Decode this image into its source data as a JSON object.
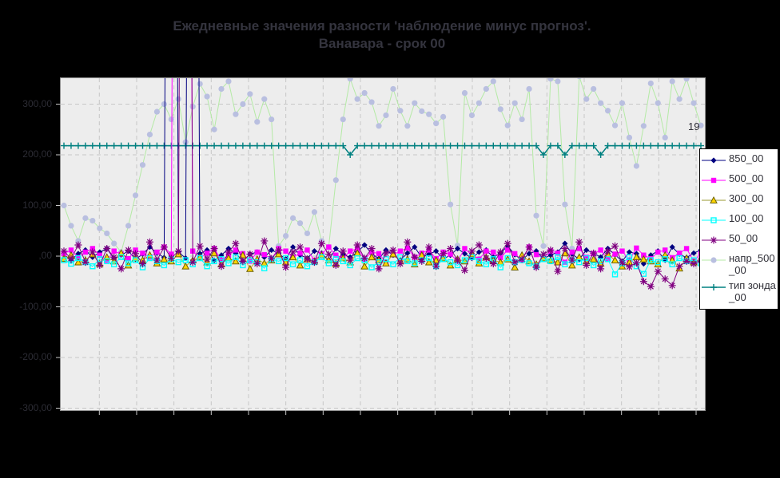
{
  "title": {
    "line1": "Ежедневные значения разности 'наблюдение минус прогноз'.",
    "line2": "Ванавара - срок 00"
  },
  "annotation": "19",
  "colors": {
    "background": "#000000",
    "plot_background": "#ededed",
    "gridline": "#c7c7c7",
    "series_850": "#000080",
    "series_500": "#ff00ff",
    "series_300_marker": "#ffd400",
    "series_300_line": "#cdb61e",
    "series_100": "#00ffff",
    "series_50": "#800080",
    "series_napr_line": "#b4eaa5",
    "series_napr_marker": "#b9bfe0",
    "series_tip": "#008080",
    "legend_background": "#ffffff"
  },
  "y_axis": {
    "tick_labels": [
      "300,00",
      "200,00",
      "100,00",
      ",00",
      "-100,00",
      "-200,00",
      "-300,00"
    ],
    "tick_values": [
      300,
      200,
      100,
      0,
      -100,
      -200,
      -300
    ]
  },
  "legend": {
    "entries": [
      {
        "label": "850_00",
        "marker": "diamond",
        "marker_color": "#000080",
        "line_color": "#000080"
      },
      {
        "label": "500_00",
        "marker": "square",
        "marker_color": "#ff00ff",
        "line_color": "#ff00ff"
      },
      {
        "label": "300_00",
        "marker": "triangle",
        "marker_color": "#ffd400",
        "line_color": "#9a9a30"
      },
      {
        "label": "100_00",
        "marker": "open-square",
        "marker_color": "#00ffff",
        "line_color": "#00ffff"
      },
      {
        "label": "50_00",
        "marker": "asterisk",
        "marker_color": "#800080",
        "line_color": "#800080"
      },
      {
        "label": "напр_500_00",
        "marker": "circle",
        "marker_color": "#b9bfe0",
        "line_color": "#b4eaa5"
      },
      {
        "label": "тип зонда_00",
        "marker": "plus",
        "marker_color": "#008080",
        "line_color": "#008080"
      }
    ]
  },
  "chart_data": {
    "type": "line",
    "title": "Ежедневные значения разности 'наблюдение минус прогноз'. Ванавара - срок 00",
    "xlabel": "",
    "ylabel": "",
    "ylim": [
      -300,
      300
    ],
    "yticks": [
      300,
      200,
      100,
      0,
      -100,
      -200,
      -300
    ],
    "grid": true,
    "legend_position": "right",
    "n_points": 90,
    "series": [
      {
        "name": "850_00",
        "marker": "diamond",
        "marker_color": "#000080",
        "line_color": "#000080",
        "values": [
          3,
          -8,
          5,
          12,
          -2,
          8,
          15,
          -5,
          2,
          10,
          -6,
          4,
          18,
          6,
          -3,
          3000,
          8,
          -4,
          2800,
          5,
          12,
          -8,
          2,
          15,
          6,
          -10,
          4,
          8,
          -2,
          12,
          5,
          -6,
          18,
          2,
          -4,
          10,
          6,
          -8,
          15,
          3,
          -2,
          8,
          22,
          5,
          -5,
          12,
          2,
          -8,
          6,
          18,
          -3,
          4,
          10,
          -6,
          2,
          15,
          5,
          -4,
          8,
          12,
          -2,
          6,
          20,
          3,
          -8,
          5,
          10,
          -5,
          2,
          8,
          25,
          4,
          -6,
          12,
          6,
          -2,
          15,
          3,
          -10,
          8,
          5,
          -15,
          2,
          10,
          -8,
          18,
          4,
          -3,
          6,
          12
        ]
      },
      {
        "name": "500_00",
        "marker": "square",
        "marker_color": "#ff00ff",
        "line_color": "#ff00ff",
        "values": [
          5,
          12,
          -3,
          8,
          15,
          2,
          -8,
          10,
          4,
          -5,
          12,
          6,
          -2,
          8,
          18,
          4,
          3200,
          2900,
          10,
          -4,
          6,
          15,
          -8,
          2,
          12,
          5,
          -10,
          8,
          3,
          -5,
          15,
          10,
          -2,
          6,
          12,
          -8,
          4,
          18,
          2,
          -4,
          10,
          15,
          -6,
          8,
          5,
          -12,
          3,
          10,
          16,
          -2,
          6,
          12,
          -5,
          8,
          4,
          -10,
          15,
          2,
          -6,
          10,
          8,
          -3,
          12,
          5,
          -8,
          18,
          3,
          -4,
          10,
          6,
          -12,
          8,
          15,
          -2,
          5,
          12,
          -6,
          4,
          10,
          -8,
          16,
          2,
          -5,
          8,
          12,
          -3,
          6,
          15,
          -10,
          5
        ]
      },
      {
        "name": "300_00",
        "marker": "triangle",
        "marker_color": "#ffd400",
        "line_color": "#cdb61e",
        "values": [
          -5,
          2,
          -12,
          -8,
          4,
          -15,
          -2,
          -10,
          6,
          -18,
          -4,
          -8,
          2,
          -14,
          -6,
          -10,
          4,
          -20,
          -8,
          -2,
          -12,
          6,
          -16,
          -4,
          -10,
          2,
          -25,
          -6,
          -14,
          -8,
          4,
          -12,
          -2,
          -18,
          -6,
          -10,
          2,
          -8,
          -15,
          -4,
          -12,
          6,
          -20,
          -2,
          -8,
          -14,
          4,
          -10,
          -6,
          -16,
          2,
          -12,
          -8,
          -4,
          -18,
          -6,
          -10,
          4,
          -14,
          -2,
          -8,
          -12,
          -6,
          -22,
          2,
          -10,
          -16,
          -4,
          -8,
          -12,
          6,
          -18,
          -2,
          -10,
          -6,
          -14,
          4,
          -8,
          -20,
          -12,
          -2,
          -6,
          -10,
          -16,
          2,
          -8,
          -24,
          -4,
          -12,
          -6
        ]
      },
      {
        "name": "100_00",
        "marker": "open-square",
        "marker_color": "#00ffff",
        "line_color": "#00ffff",
        "values": [
          -8,
          -15,
          -4,
          -12,
          -20,
          -6,
          -10,
          -16,
          -2,
          -14,
          -8,
          -22,
          -4,
          -10,
          -18,
          -6,
          -12,
          -8,
          -16,
          -4,
          -20,
          -10,
          -6,
          -14,
          -2,
          -18,
          -8,
          -12,
          -24,
          -6,
          -10,
          -4,
          -16,
          -8,
          -20,
          -12,
          -2,
          -14,
          -6,
          -10,
          -18,
          -4,
          -8,
          -22,
          -12,
          -6,
          -16,
          -2,
          -10,
          -14,
          -8,
          -4,
          -20,
          -6,
          -12,
          -18,
          -8,
          -2,
          -10,
          -16,
          -6,
          -22,
          -4,
          -12,
          -8,
          -14,
          -20,
          -6,
          -10,
          -2,
          -16,
          -8,
          -12,
          -4,
          -18,
          -10,
          -6,
          -36,
          -14,
          -2,
          -20,
          -35,
          -8,
          -12,
          -6,
          -16,
          -4,
          -10,
          -8,
          -14
        ]
      },
      {
        "name": "50_00",
        "marker": "asterisk",
        "marker_color": "#800080",
        "line_color": "#800080",
        "values": [
          10,
          -5,
          22,
          -12,
          8,
          -18,
          15,
          -2,
          -25,
          12,
          5,
          -15,
          28,
          -8,
          18,
          -4,
          10,
          3100,
          -12,
          20,
          -6,
          15,
          -20,
          8,
          25,
          -10,
          4,
          -15,
          30,
          -5,
          12,
          -22,
          8,
          18,
          -6,
          -12,
          25,
          4,
          -18,
          10,
          -8,
          22,
          -4,
          15,
          -25,
          6,
          12,
          -15,
          28,
          -2,
          -10,
          18,
          -20,
          5,
          15,
          -8,
          -28,
          10,
          22,
          -4,
          -15,
          8,
          25,
          -12,
          -6,
          18,
          -22,
          4,
          12,
          -30,
          15,
          -8,
          28,
          -18,
          6,
          -25,
          10,
          20,
          -13,
          -21,
          -13,
          -50,
          -60,
          -30,
          -45,
          -58,
          -20,
          -10,
          -15,
          -8
        ]
      },
      {
        "name": "напр_500_00",
        "marker": "circle",
        "marker_color": "#b9bfe0",
        "line_color": "#b4eaa5",
        "values": [
          100,
          60,
          30,
          75,
          70,
          55,
          45,
          25,
          8,
          60,
          120,
          180,
          240,
          285,
          300,
          270,
          310,
          225,
          295,
          340,
          315,
          250,
          330,
          345,
          280,
          300,
          320,
          265,
          310,
          270,
          20,
          40,
          75,
          65,
          45,
          87,
          30,
          18,
          150,
          270,
          350,
          310,
          322,
          304,
          257,
          278,
          330,
          287,
          257,
          302,
          286,
          280,
          262,
          275,
          102,
          21,
          322,
          278,
          302,
          330,
          345,
          290,
          258,
          302,
          270,
          330,
          80,
          20,
          350,
          345,
          102,
          15,
          355,
          310,
          330,
          302,
          287,
          258,
          302,
          234,
          178,
          257,
          341,
          302,
          234,
          345,
          310,
          350,
          302,
          258
        ]
      },
      {
        "name": "тип зонда_00",
        "marker": "plus",
        "marker_color": "#008080",
        "line_color": "#008080",
        "values": [
          218,
          218,
          218,
          218,
          218,
          218,
          218,
          218,
          218,
          218,
          218,
          218,
          218,
          218,
          218,
          218,
          218,
          218,
          218,
          218,
          218,
          218,
          218,
          218,
          218,
          218,
          218,
          218,
          218,
          218,
          218,
          218,
          218,
          218,
          218,
          218,
          218,
          218,
          218,
          218,
          200,
          218,
          218,
          218,
          218,
          218,
          218,
          218,
          218,
          218,
          218,
          218,
          218,
          218,
          218,
          218,
          218,
          218,
          218,
          218,
          218,
          218,
          218,
          218,
          218,
          218,
          218,
          200,
          218,
          218,
          200,
          218,
          218,
          218,
          218,
          200,
          218,
          218,
          218,
          218,
          218,
          218,
          218,
          218,
          218,
          218,
          218,
          218,
          218,
          218
        ]
      }
    ]
  }
}
